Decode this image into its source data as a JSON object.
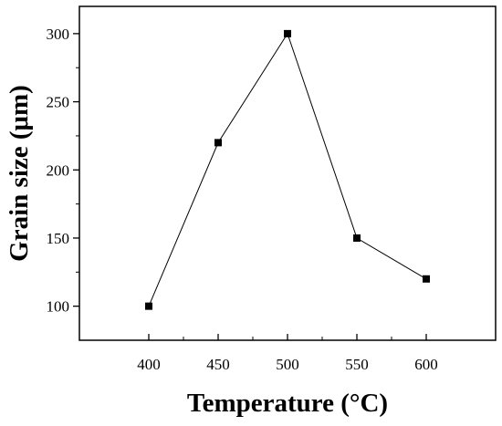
{
  "chart_data": {
    "type": "line",
    "title": "",
    "xlabel": "Temperature (°C)",
    "ylabel": "Grain size (μm)",
    "x": [
      400,
      450,
      500,
      550,
      600
    ],
    "series": [
      {
        "values": [
          100,
          220,
          300,
          150,
          120
        ]
      }
    ],
    "xlim": [
      350,
      650
    ],
    "ylim": [
      75,
      320
    ],
    "xticks": [
      400,
      450,
      500,
      550,
      600
    ],
    "yticks": [
      100,
      150,
      200,
      250,
      300
    ],
    "xtick_labels": [
      "400",
      "450",
      "500",
      "550",
      "600"
    ],
    "ytick_labels": [
      "100",
      "150",
      "200",
      "250",
      "300"
    ],
    "grid": false,
    "legend": "none",
    "marker": "square",
    "line_color": "#000000",
    "marker_color": "#000000"
  }
}
